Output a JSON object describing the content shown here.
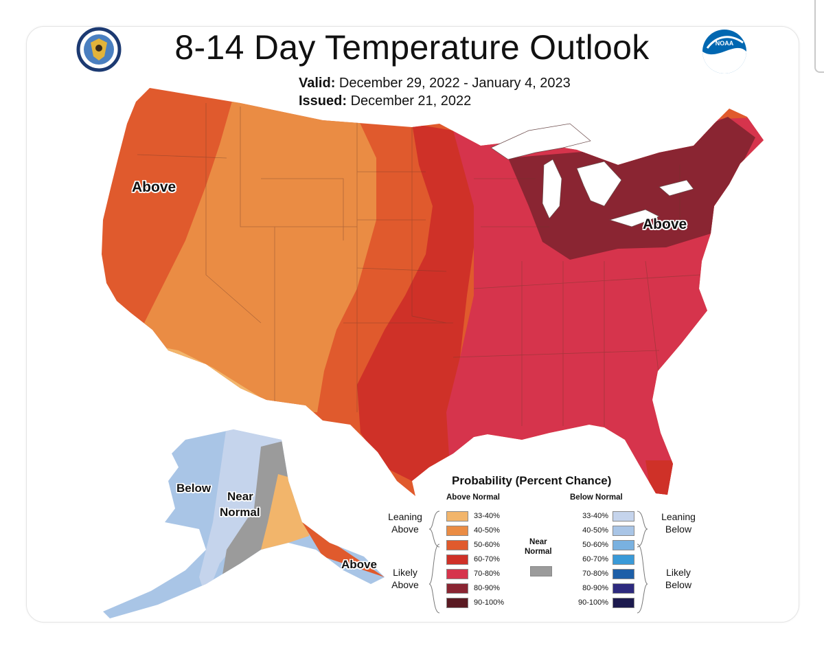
{
  "header": {
    "title": "8-14 Day Temperature Outlook",
    "valid_label": "Valid:",
    "valid_value": "December 29, 2022 - January 4, 2023",
    "issued_label": "Issued:",
    "issued_value": "December 21, 2022"
  },
  "logos": {
    "left": "commerce-seal-icon",
    "right": "noaa-logo-icon",
    "noaa_text": "NOAA"
  },
  "map_labels": {
    "west": "Above",
    "northeast": "Above",
    "alaska_below": "Below",
    "alaska_near_1": "Near",
    "alaska_near_2": "Normal",
    "alaska_south": "Above"
  },
  "legend": {
    "title": "Probability (Percent Chance)",
    "above_header": "Above Normal",
    "below_header": "Below Normal",
    "above": [
      {
        "label": "33-40%",
        "color": "#f2b56b"
      },
      {
        "label": "40-50%",
        "color": "#ea8c44"
      },
      {
        "label": "50-60%",
        "color": "#e05a2d"
      },
      {
        "label": "60-70%",
        "color": "#cf3128"
      },
      {
        "label": "70-80%",
        "color": "#d6344c"
      },
      {
        "label": "80-90%",
        "color": "#8a2532"
      },
      {
        "label": "90-100%",
        "color": "#5a1a22"
      }
    ],
    "below": [
      {
        "label": "33-40%",
        "color": "#c5d4ec"
      },
      {
        "label": "40-50%",
        "color": "#a9c5e6"
      },
      {
        "label": "50-60%",
        "color": "#79b1e0"
      },
      {
        "label": "60-70%",
        "color": "#3a9ad8"
      },
      {
        "label": "70-80%",
        "color": "#1d5fa8"
      },
      {
        "label": "80-90%",
        "color": "#2d2a7e"
      },
      {
        "label": "90-100%",
        "color": "#1c1a4e"
      }
    ],
    "near_normal_1": "Near",
    "near_normal_2": "Normal",
    "near_normal_color": "#9b9b9b",
    "leaning_above_1": "Leaning",
    "leaning_above_2": "Above",
    "likely_above_1": "Likely",
    "likely_above_2": "Above",
    "leaning_below_1": "Leaning",
    "leaning_below_2": "Below",
    "likely_below_1": "Likely",
    "likely_below_2": "Below"
  }
}
